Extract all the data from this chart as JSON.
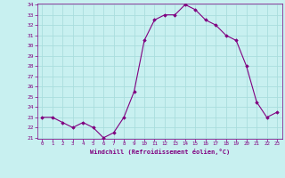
{
  "x": [
    0,
    1,
    2,
    3,
    4,
    5,
    6,
    7,
    8,
    9,
    10,
    11,
    12,
    13,
    14,
    15,
    16,
    17,
    18,
    19,
    20,
    21,
    22,
    23
  ],
  "y": [
    23.0,
    23.0,
    22.5,
    22.0,
    22.5,
    22.0,
    21.0,
    21.5,
    23.0,
    25.5,
    30.5,
    32.5,
    33.0,
    33.0,
    34.0,
    33.5,
    32.5,
    32.0,
    31.0,
    30.5,
    28.0,
    24.5,
    23.0,
    23.5
  ],
  "line_color": "#800080",
  "marker": "D",
  "marker_size": 1.8,
  "bg_color": "#c8f0f0",
  "grid_color": "#aadddd",
  "tick_color": "#800080",
  "label_color": "#800080",
  "xlabel": "Windchill (Refroidissement éolien,°C)",
  "ylim_min": 21,
  "ylim_max": 34,
  "xlim_min": -0.5,
  "xlim_max": 23.5,
  "yticks": [
    21,
    22,
    23,
    24,
    25,
    26,
    27,
    28,
    29,
    30,
    31,
    32,
    33,
    34
  ],
  "xticks": [
    0,
    1,
    2,
    3,
    4,
    5,
    6,
    7,
    8,
    9,
    10,
    11,
    12,
    13,
    14,
    15,
    16,
    17,
    18,
    19,
    20,
    21,
    22,
    23
  ]
}
